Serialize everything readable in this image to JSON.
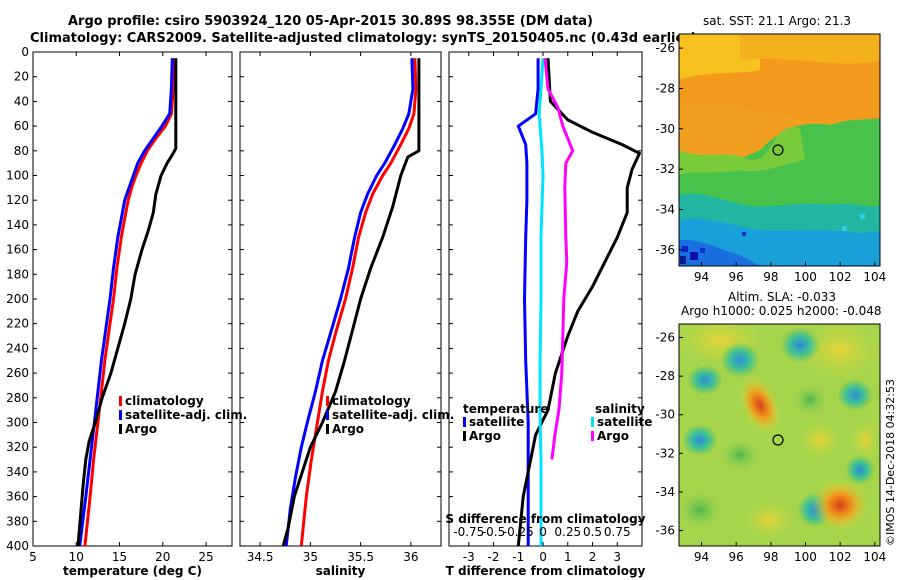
{
  "header": {
    "title_line1": "Argo profile: csiro 5903924_120 05-Apr-2015 30.89S 98.355E (DM data)",
    "title_line2": "Climatology: CARS2009. Satellite-adjusted climatology: synTS_20150405.nc (0.43d earlier)"
  },
  "colors": {
    "climatology": "#ff0000",
    "satellite": "#0000ff",
    "argo": "#000000",
    "sat_salinity": "#00e5ff",
    "argo_salinity": "#ff00ff"
  },
  "chart_data": [
    {
      "id": "temperature",
      "type": "line",
      "xlabel": "temperature (deg C)",
      "ylabel": "",
      "xlim": [
        5,
        28
      ],
      "ylim": [
        400,
        0
      ],
      "x_ticks": [
        5,
        10,
        15,
        20,
        25
      ],
      "y_ticks": [
        0,
        20,
        40,
        60,
        80,
        100,
        120,
        140,
        160,
        180,
        200,
        220,
        240,
        260,
        280,
        300,
        320,
        340,
        360,
        380,
        400
      ],
      "legend": [
        "climatology",
        "satellite-adj. clim.",
        "Argo"
      ],
      "series": [
        {
          "name": "climatology",
          "color": "#ff0000",
          "points": [
            [
              21.3,
              5
            ],
            [
              21.2,
              30
            ],
            [
              21.0,
              50
            ],
            [
              20.3,
              60
            ],
            [
              19.2,
              70
            ],
            [
              18.2,
              80
            ],
            [
              17.5,
              90
            ],
            [
              16.9,
              100
            ],
            [
              16.4,
              110
            ],
            [
              16.0,
              120
            ],
            [
              15.6,
              135
            ],
            [
              15.2,
              150
            ],
            [
              14.7,
              175
            ],
            [
              14.3,
              200
            ],
            [
              13.8,
              225
            ],
            [
              13.3,
              250
            ],
            [
              12.9,
              275
            ],
            [
              12.5,
              300
            ],
            [
              12.0,
              330
            ],
            [
              11.6,
              360
            ],
            [
              11.0,
              400
            ]
          ]
        },
        {
          "name": "satellite-adj. clim.",
          "color": "#0000ff",
          "points": [
            [
              21.1,
              5
            ],
            [
              21.0,
              30
            ],
            [
              20.8,
              50
            ],
            [
              19.9,
              60
            ],
            [
              18.9,
              70
            ],
            [
              17.9,
              80
            ],
            [
              17.1,
              90
            ],
            [
              16.6,
              100
            ],
            [
              16.1,
              110
            ],
            [
              15.6,
              120
            ],
            [
              15.2,
              135
            ],
            [
              14.8,
              150
            ],
            [
              14.3,
              175
            ],
            [
              13.9,
              200
            ],
            [
              13.4,
              225
            ],
            [
              12.9,
              250
            ],
            [
              12.5,
              275
            ],
            [
              12.1,
              300
            ],
            [
              11.6,
              330
            ],
            [
              11.1,
              360
            ],
            [
              10.4,
              400
            ]
          ]
        },
        {
          "name": "Argo",
          "color": "#000000",
          "points": [
            [
              21.5,
              5
            ],
            [
              21.5,
              40
            ],
            [
              21.5,
              78
            ],
            [
              21.2,
              82
            ],
            [
              20.5,
              90
            ],
            [
              19.8,
              100
            ],
            [
              19.2,
              115
            ],
            [
              18.9,
              130
            ],
            [
              18.3,
              145
            ],
            [
              17.6,
              160
            ],
            [
              16.8,
              180
            ],
            [
              16.3,
              200
            ],
            [
              15.6,
              220
            ],
            [
              14.8,
              240
            ],
            [
              14.0,
              260
            ],
            [
              13.0,
              280
            ],
            [
              12.2,
              300
            ],
            [
              11.5,
              315
            ],
            [
              11.1,
              330
            ],
            [
              10.8,
              350
            ],
            [
              10.5,
              375
            ],
            [
              10.2,
              400
            ]
          ]
        }
      ]
    },
    {
      "id": "salinity",
      "type": "line",
      "xlabel": "salinity",
      "ylabel": "",
      "xlim": [
        34.3,
        36.3
      ],
      "ylim": [
        400,
        0
      ],
      "x_ticks": [
        34.5,
        35,
        35.5,
        36
      ],
      "x_tick_labels": [
        "34.5",
        "35",
        "35.5",
        "36"
      ],
      "legend": [
        "climatology",
        "satellite-adj. clim.",
        "Argo"
      ],
      "series": [
        {
          "name": "climatology",
          "color": "#ff0000",
          "points": [
            [
              36.04,
              5
            ],
            [
              36.05,
              30
            ],
            [
              36.03,
              50
            ],
            [
              35.98,
              62
            ],
            [
              35.9,
              75
            ],
            [
              35.8,
              90
            ],
            [
              35.72,
              100
            ],
            [
              35.62,
              115
            ],
            [
              35.55,
              130
            ],
            [
              35.48,
              150
            ],
            [
              35.42,
              175
            ],
            [
              35.35,
              200
            ],
            [
              35.26,
              225
            ],
            [
              35.18,
              250
            ],
            [
              35.12,
              275
            ],
            [
              35.07,
              300
            ],
            [
              35.01,
              330
            ],
            [
              34.96,
              360
            ],
            [
              34.91,
              400
            ]
          ]
        },
        {
          "name": "satellite-adj. clim.",
          "color": "#0000ff",
          "points": [
            [
              36.01,
              5
            ],
            [
              36.02,
              30
            ],
            [
              35.98,
              50
            ],
            [
              35.92,
              62
            ],
            [
              35.84,
              75
            ],
            [
              35.74,
              90
            ],
            [
              35.66,
              100
            ],
            [
              35.57,
              115
            ],
            [
              35.5,
              130
            ],
            [
              35.44,
              150
            ],
            [
              35.38,
              175
            ],
            [
              35.3,
              200
            ],
            [
              35.21,
              225
            ],
            [
              35.12,
              250
            ],
            [
              35.05,
              275
            ],
            [
              34.97,
              300
            ],
            [
              34.91,
              320
            ],
            [
              34.85,
              345
            ],
            [
              34.8,
              370
            ],
            [
              34.76,
              400
            ]
          ]
        },
        {
          "name": "Argo",
          "color": "#000000",
          "points": [
            [
              36.08,
              5
            ],
            [
              36.08,
              40
            ],
            [
              36.08,
              80
            ],
            [
              35.97,
              85
            ],
            [
              35.9,
              100
            ],
            [
              35.82,
              125
            ],
            [
              35.72,
              150
            ],
            [
              35.6,
              175
            ],
            [
              35.5,
              200
            ],
            [
              35.42,
              225
            ],
            [
              35.34,
              250
            ],
            [
              35.25,
              275
            ],
            [
              35.12,
              300
            ],
            [
              35.0,
              320
            ],
            [
              34.92,
              340
            ],
            [
              34.84,
              360
            ],
            [
              34.78,
              385
            ],
            [
              34.73,
              400
            ]
          ]
        }
      ]
    },
    {
      "id": "difference",
      "type": "line",
      "xlabel": "T difference from climatology",
      "top_label": "S difference from climatology",
      "xlim": [
        -3.8,
        4.0
      ],
      "ylim": [
        400,
        0
      ],
      "x_ticks": [
        -3,
        -2,
        -1,
        0,
        1,
        2,
        3
      ],
      "x_tick_labels": [
        "-3",
        "-2",
        "-1",
        "0",
        "1",
        "2",
        "3"
      ],
      "s_ticks": [
        -0.75,
        -0.5,
        -0.25,
        0,
        0.25,
        0.5,
        0.75
      ],
      "s_tick_labels": [
        "-0.75",
        "-0.5",
        "-0.25",
        "0",
        "0.25",
        "0.5",
        "0.75"
      ],
      "s_xlim": [
        -0.95,
        1.0
      ],
      "legend_temperature": {
        "title": "temperature",
        "entries": [
          "satellite",
          "Argo"
        ]
      },
      "legend_salinity": {
        "title": "salinity",
        "entries": [
          "satellite",
          "Argo"
        ]
      },
      "series": [
        {
          "name": "T satellite",
          "color": "#0000ff",
          "points": [
            [
              -0.2,
              5
            ],
            [
              -0.2,
              30
            ],
            [
              -0.3,
              50
            ],
            [
              -1.0,
              60
            ],
            [
              -0.7,
              75
            ],
            [
              -0.65,
              90
            ],
            [
              -0.65,
              120
            ],
            [
              -0.7,
              150
            ],
            [
              -0.75,
              200
            ],
            [
              -0.7,
              250
            ],
            [
              -0.6,
              300
            ],
            [
              -0.6,
              340
            ],
            [
              -0.6,
              400
            ]
          ]
        },
        {
          "name": "T Argo",
          "color": "#000000",
          "points": [
            [
              0.2,
              5
            ],
            [
              0.3,
              40
            ],
            [
              1.0,
              55
            ],
            [
              2.0,
              65
            ],
            [
              3.2,
              75
            ],
            [
              3.9,
              82
            ],
            [
              3.6,
              95
            ],
            [
              3.4,
              110
            ],
            [
              3.4,
              130
            ],
            [
              3.0,
              150
            ],
            [
              2.5,
              170
            ],
            [
              2.0,
              190
            ],
            [
              1.4,
              210
            ],
            [
              1.0,
              230
            ],
            [
              0.5,
              260
            ],
            [
              0.2,
              290
            ],
            [
              -0.3,
              310
            ],
            [
              -0.5,
              330
            ],
            [
              -0.8,
              360
            ],
            [
              -1.0,
              400
            ]
          ]
        },
        {
          "name": "S satellite",
          "color": "#00e5ff",
          "points": [
            [
              0.0,
              5
            ],
            [
              -0.02,
              30
            ],
            [
              -0.04,
              50
            ],
            [
              -0.01,
              80
            ],
            [
              0.0,
              100
            ],
            [
              -0.02,
              150
            ],
            [
              -0.02,
              200
            ],
            [
              -0.03,
              250
            ],
            [
              -0.03,
              300
            ],
            [
              -0.02,
              330
            ],
            [
              -0.02,
              400
            ]
          ]
        },
        {
          "name": "S Argo",
          "color": "#ff00ff",
          "points": [
            [
              0.02,
              5
            ],
            [
              0.05,
              30
            ],
            [
              0.15,
              45
            ],
            [
              0.2,
              60
            ],
            [
              0.25,
              70
            ],
            [
              0.3,
              80
            ],
            [
              0.23,
              90
            ],
            [
              0.22,
              110
            ],
            [
              0.23,
              150
            ],
            [
              0.24,
              170
            ],
            [
              0.21,
              200
            ],
            [
              0.2,
              230
            ],
            [
              0.19,
              260
            ],
            [
              0.16,
              290
            ],
            [
              0.12,
              310
            ],
            [
              0.09,
              330
            ]
          ]
        }
      ]
    }
  ],
  "maps": {
    "sst": {
      "title": "sat. SST: 21.1 Argo: 21.3",
      "lon_ticks": [
        "94",
        "96",
        "98",
        "100",
        "102",
        "104"
      ],
      "lat_ticks": [
        "-26",
        "-28",
        "-30",
        "-32",
        "-34",
        "-36"
      ]
    },
    "sla": {
      "title_line1": "Altim. SLA: -0.033",
      "title_line2": "Argo h1000: 0.025 h2000: -0.048",
      "lon_ticks": [
        "94",
        "96",
        "98",
        "100",
        "102",
        "104"
      ],
      "lat_ticks": [
        "-26",
        "-28",
        "-30",
        "-32",
        "-34",
        "-36"
      ]
    }
  },
  "watermark": "©IMOS 14-Dec-2018 04:32:53"
}
